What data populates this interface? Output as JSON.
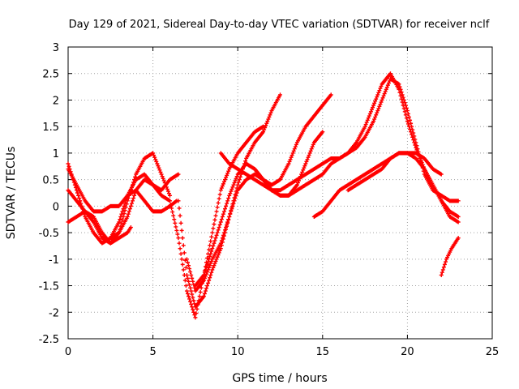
{
  "chart_data": {
    "type": "scatter",
    "title": "Day 129 of 2021, Sidereal Day-to-day VTEC variation (SDTVAR) for receiver nclf",
    "xlabel": "GPS time / hours",
    "ylabel": "SDTVAR / TECUs",
    "xlim": [
      0,
      25
    ],
    "ylim": [
      -2.5,
      3
    ],
    "xticks": [
      0,
      5,
      10,
      15,
      20,
      25
    ],
    "yticks": [
      -2.5,
      -2,
      -1.5,
      -1,
      -0.5,
      0,
      0.5,
      1,
      1.5,
      2,
      2.5,
      3
    ],
    "grid": true,
    "marker": "+",
    "color": "#ff0000",
    "series": [
      {
        "x": [
          0,
          0.5,
          1,
          1.5,
          2,
          2.5,
          3,
          3.5,
          4,
          4.5,
          5,
          5.5,
          6,
          6.5
        ],
        "y": [
          0.8,
          0.3,
          -0.2,
          -0.5,
          -0.7,
          -0.6,
          -0.3,
          0.2,
          0.5,
          0.6,
          0.4,
          0.3,
          0.5,
          0.6
        ]
      },
      {
        "x": [
          0,
          0.5,
          1,
          1.5,
          2,
          2.5,
          3,
          3.5,
          4,
          4.5,
          5,
          5.5,
          6
        ],
        "y": [
          0.3,
          0.1,
          -0.1,
          -0.3,
          -0.6,
          -0.7,
          -0.5,
          0.1,
          0.6,
          0.9,
          1.0,
          0.6,
          0.2
        ]
      },
      {
        "x": [
          0,
          0.5,
          1,
          1.5,
          2,
          2.5,
          3,
          3.5,
          3.7
        ],
        "y": [
          -0.3,
          -0.2,
          -0.1,
          -0.2,
          -0.5,
          -0.7,
          -0.6,
          -0.5,
          -0.4
        ]
      },
      {
        "x": [
          0,
          0.5,
          1,
          1.5,
          2,
          2.5,
          3,
          3.5,
          4,
          4.5,
          5,
          5.5,
          6,
          6.4
        ],
        "y": [
          0.7,
          0.4,
          0.1,
          -0.1,
          -0.1,
          0.0,
          0.0,
          0.2,
          0.3,
          0.1,
          -0.1,
          -0.1,
          0.0,
          0.1
        ]
      },
      {
        "x": [
          2.5,
          3,
          3.5,
          4,
          4.5,
          5,
          5.5,
          6,
          6.5,
          7,
          7.5,
          8,
          8.5,
          9,
          9.5,
          10,
          10.5,
          11,
          11.5
        ],
        "y": [
          -0.6,
          -0.5,
          -0.2,
          0.3,
          0.5,
          0.4,
          0.2,
          0.1,
          -0.6,
          -1.6,
          -2.1,
          -1.3,
          -0.5,
          0.3,
          0.7,
          1.0,
          1.2,
          1.4,
          1.5
        ]
      },
      {
        "x": [
          6.5,
          7,
          7.5,
          8,
          8.5,
          9,
          9.5,
          10,
          10.5,
          11,
          11.5,
          12,
          12.5
        ],
        "y": [
          0.1,
          -1.3,
          -1.9,
          -1.7,
          -1.2,
          -0.8,
          -0.2,
          0.4,
          0.9,
          1.2,
          1.4,
          1.8,
          2.1
        ]
      },
      {
        "x": [
          7,
          7.5,
          8,
          8.5,
          9,
          9.5,
          10,
          10.5,
          11,
          11.5,
          12,
          12.5,
          13,
          13.5,
          14,
          14.5,
          15,
          15.5
        ],
        "y": [
          -1.0,
          -1.6,
          -1.4,
          -1.0,
          -0.7,
          -0.2,
          0.3,
          0.5,
          0.6,
          0.5,
          0.4,
          0.5,
          0.8,
          1.2,
          1.5,
          1.7,
          1.9,
          2.1
        ]
      },
      {
        "x": [
          7.5,
          8,
          8.5,
          9,
          9.5,
          10,
          10.5,
          11,
          11.5,
          12,
          12.5,
          13,
          13.5,
          14,
          14.5,
          15
        ],
        "y": [
          -1.5,
          -1.3,
          -0.8,
          -0.3,
          0.2,
          0.6,
          0.8,
          0.7,
          0.5,
          0.3,
          0.2,
          0.2,
          0.4,
          0.8,
          1.2,
          1.4
        ]
      },
      {
        "x": [
          9,
          9.5,
          10,
          10.5,
          11,
          11.5,
          12,
          12.5,
          13,
          13.5,
          14,
          14.5,
          15,
          15.5,
          16,
          16.5,
          17,
          17.5,
          18,
          18.5,
          19,
          19.5,
          20,
          20.5,
          21,
          21.5,
          22,
          22.5,
          23
        ],
        "y": [
          1.0,
          0.8,
          0.7,
          0.6,
          0.5,
          0.4,
          0.3,
          0.3,
          0.4,
          0.5,
          0.6,
          0.7,
          0.8,
          0.9,
          0.9,
          1.0,
          1.1,
          1.3,
          1.6,
          2.0,
          2.4,
          2.3,
          1.8,
          1.2,
          0.6,
          0.3,
          0.2,
          0.1,
          0.1
        ]
      },
      {
        "x": [
          11,
          11.5,
          12,
          12.5,
          13,
          13.5,
          14,
          14.5,
          15,
          15.5,
          16,
          16.5,
          17,
          17.5,
          18,
          18.5,
          19,
          19.5,
          20,
          20.5,
          21,
          21.5,
          22,
          22.5,
          23
        ],
        "y": [
          0.7,
          0.5,
          0.3,
          0.2,
          0.2,
          0.3,
          0.4,
          0.5,
          0.6,
          0.8,
          0.9,
          1.0,
          1.2,
          1.5,
          1.9,
          2.3,
          2.5,
          2.2,
          1.6,
          1.1,
          0.7,
          0.4,
          0.1,
          -0.2,
          -0.3
        ]
      },
      {
        "x": [
          14.5,
          15,
          15.5,
          16,
          16.5,
          17,
          17.5,
          18,
          18.5,
          19,
          19.5,
          20,
          20.5,
          21,
          21.5,
          22,
          22.5,
          23
        ],
        "y": [
          -0.2,
          -0.1,
          0.1,
          0.3,
          0.4,
          0.5,
          0.6,
          0.7,
          0.8,
          0.9,
          1.0,
          1.0,
          0.9,
          0.7,
          0.4,
          0.1,
          -0.1,
          -0.2
        ]
      },
      {
        "x": [
          16.5,
          17,
          17.5,
          18,
          18.5,
          19,
          19.5,
          20,
          20.5,
          21,
          21.5,
          22
        ],
        "y": [
          0.3,
          0.4,
          0.5,
          0.6,
          0.7,
          0.9,
          1.0,
          1.0,
          1.0,
          0.9,
          0.7,
          0.6
        ]
      },
      {
        "x": [
          22,
          22.3,
          22.6,
          23
        ],
        "y": [
          -1.3,
          -1.0,
          -0.8,
          -0.6
        ]
      }
    ]
  }
}
